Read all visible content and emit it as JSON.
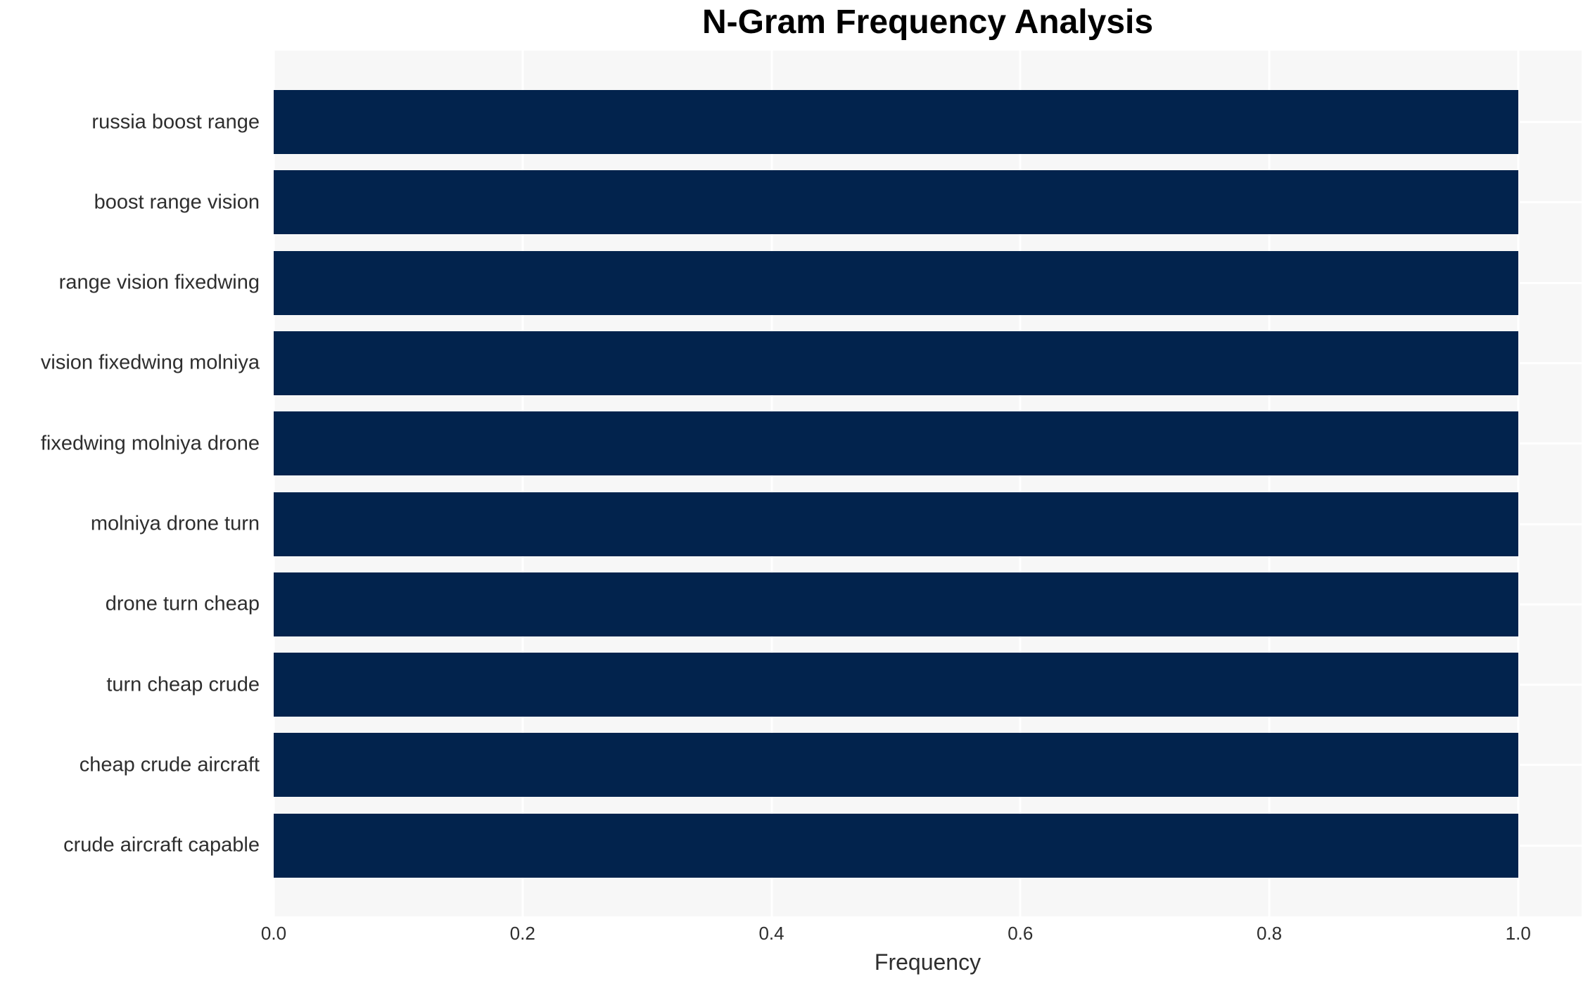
{
  "chart_data": {
    "type": "bar",
    "orientation": "horizontal",
    "title": "N-Gram Frequency Analysis",
    "xlabel": "Frequency",
    "ylabel": "",
    "categories": [
      "russia boost range",
      "boost range vision",
      "range vision fixedwing",
      "vision fixedwing molniya",
      "fixedwing molniya drone",
      "molniya drone turn",
      "drone turn cheap",
      "turn cheap crude",
      "cheap crude aircraft",
      "crude aircraft capable"
    ],
    "values": [
      1.0,
      1.0,
      1.0,
      1.0,
      1.0,
      1.0,
      1.0,
      1.0,
      1.0,
      1.0
    ],
    "xtick_labels": [
      "0.0",
      "0.2",
      "0.4",
      "0.6",
      "0.8",
      "1.0"
    ],
    "xtick_values": [
      0.0,
      0.2,
      0.4,
      0.6,
      0.8,
      1.0
    ],
    "xlim": [
      0.0,
      1.051
    ],
    "grid": true,
    "legend_position": "none",
    "colors": {
      "bar": "#02234d",
      "plot_background": "#f7f7f7",
      "gridline": "#ffffff",
      "tick_text": "#2e2e2e",
      "title_text": "#000000",
      "figure_background": "#ffffff"
    }
  }
}
